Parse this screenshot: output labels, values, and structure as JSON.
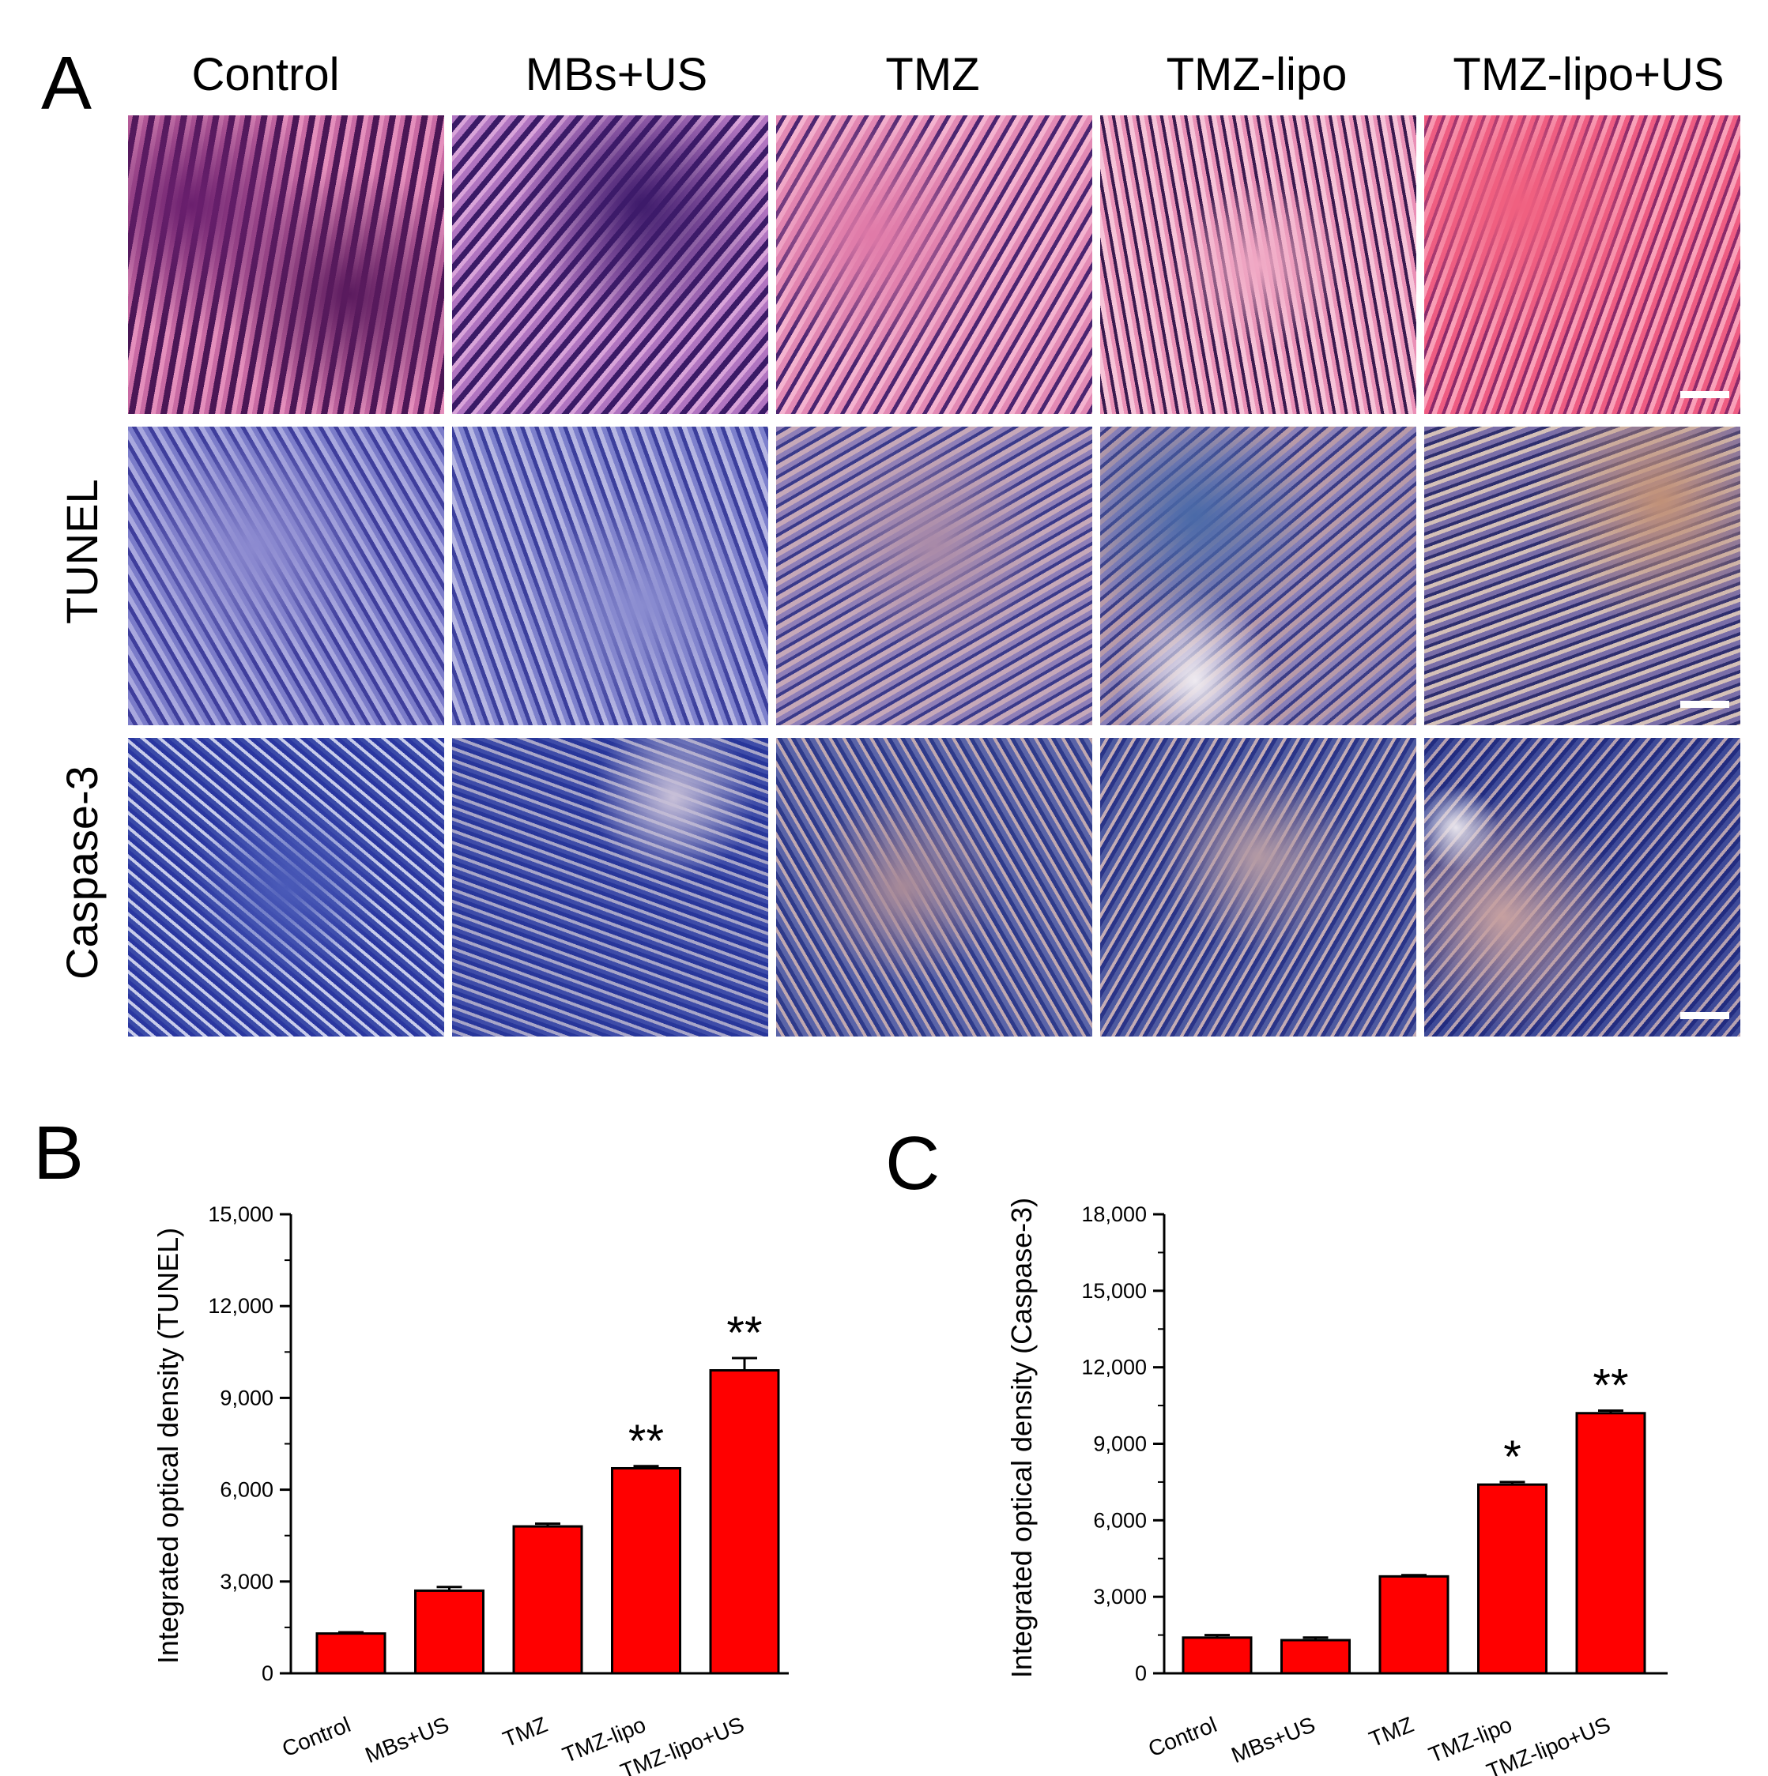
{
  "panel_a": {
    "letter": "A",
    "columns": [
      "Control",
      "MBs+US",
      "TMZ",
      "TMZ-lipo",
      "TMZ-lipo+US"
    ],
    "rows": [
      "",
      "TUNEL",
      "Caspase-3"
    ]
  },
  "panel_b": {
    "letter": "B"
  },
  "panel_c": {
    "letter": "C"
  },
  "chart_data": [
    {
      "type": "bar",
      "categories": [
        "Control",
        "MBs+US",
        "TMZ",
        "TMZ-lipo",
        "TMZ-lipo+US"
      ],
      "values": [
        1300,
        2700,
        4800,
        6700,
        9900
      ],
      "errors": [
        40,
        120,
        90,
        70,
        400
      ],
      "significance": [
        "",
        "",
        "",
        "**",
        "**"
      ],
      "ylabel": "Integrated optical density (TUNEL)",
      "yticks": [
        "0",
        "3,000",
        "6,000",
        "9,000",
        "12,000",
        "15,000"
      ],
      "ylim": [
        0,
        15000
      ],
      "bar_color": "#ff0000"
    },
    {
      "type": "bar",
      "categories": [
        "Control",
        "MBs+US",
        "TMZ",
        "TMZ-lipo",
        "TMZ-lipo+US"
      ],
      "values": [
        1400,
        1300,
        3800,
        7400,
        10200
      ],
      "errors": [
        100,
        100,
        50,
        100,
        100
      ],
      "significance": [
        "",
        "",
        "",
        "*",
        "**"
      ],
      "ylabel": "Integrated optical density (Caspase-3)",
      "yticks": [
        "0",
        "3,000",
        "6,000",
        "9,000",
        "12,000",
        "15,000",
        "18,000"
      ],
      "ylim": [
        0,
        18000
      ],
      "bar_color": "#ff0000"
    }
  ]
}
